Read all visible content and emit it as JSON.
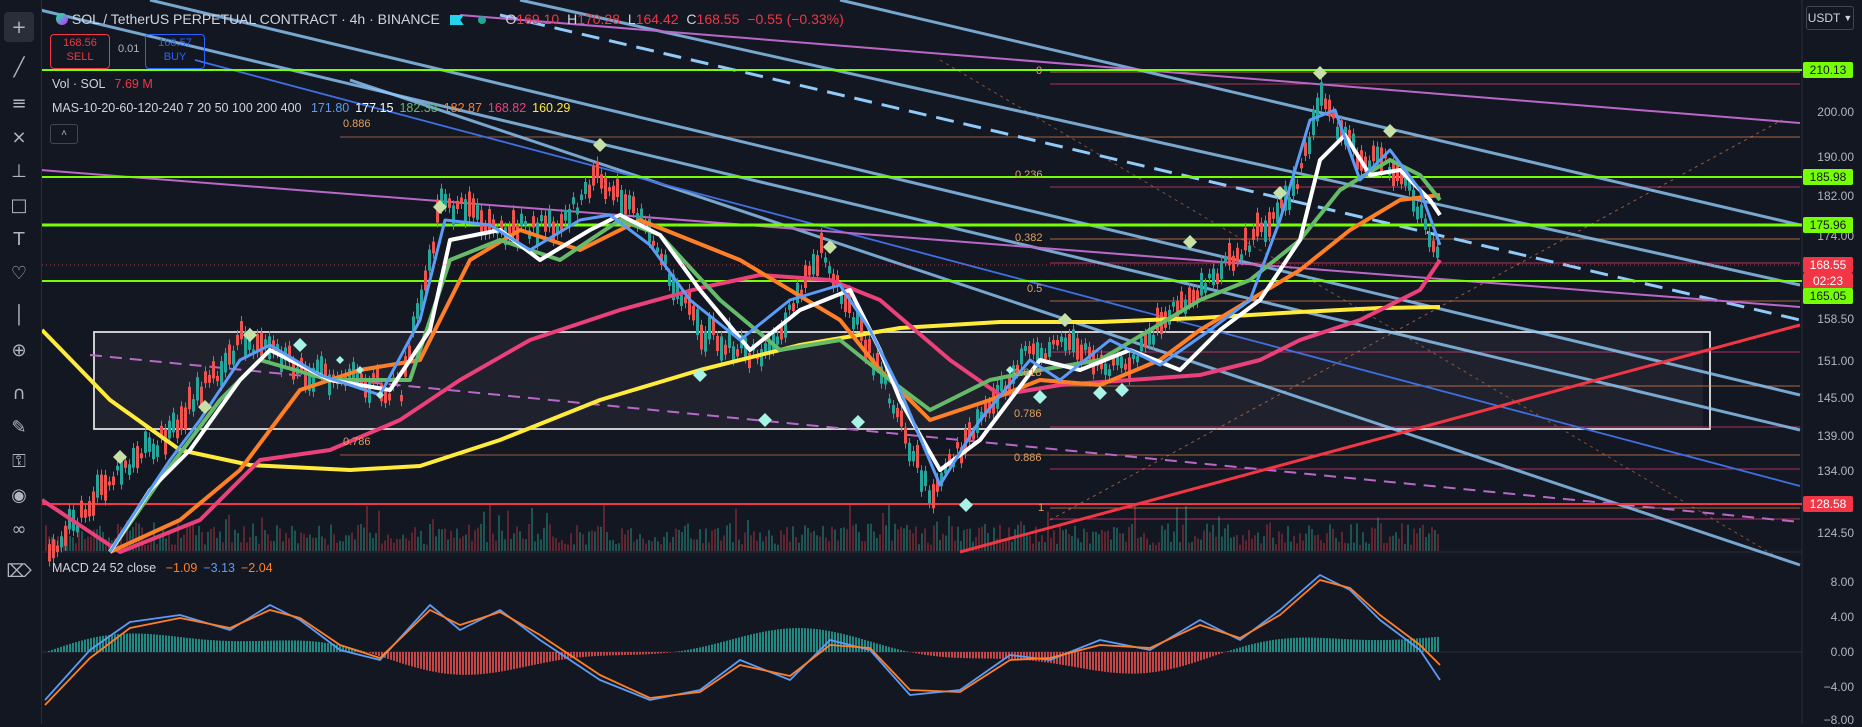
{
  "header": {
    "symbol": "SOL / TetherUS PERPETUAL CONTRACT · 4h · BINANCE",
    "open_label": "O",
    "open": "169.10",
    "high_label": "H",
    "high": "170.28",
    "low_label": "L",
    "low": "164.42",
    "close_label": "C",
    "close": "168.55",
    "change": "−0.55 (−0.33%)"
  },
  "trade": {
    "sell_price": "168.56",
    "sell_label": "SELL",
    "spread": "0.01",
    "buy_price": "168.57",
    "buy_label": "BUY"
  },
  "indicators": {
    "vol_label": "Vol · SOL",
    "vol_value": "7.69 M",
    "ma_label": "MAS-10-20-60-120-240 7 20 50 100 200 400",
    "ma_values": [
      {
        "value": "171.80",
        "color": "#5b9cf6"
      },
      {
        "value": "177.15",
        "color": "#ffffff"
      },
      {
        "value": "182.33",
        "color": "#66bb6a"
      },
      {
        "value": "182.87",
        "color": "#ff7f27"
      },
      {
        "value": "168.82",
        "color": "#ec407a"
      },
      {
        "value": "160.29",
        "color": "#ffeb3b"
      }
    ],
    "macd_label": "MACD 24 52 close",
    "macd_values": [
      {
        "value": "−1.09",
        "color": "#ff7f27"
      },
      {
        "value": "−3.13",
        "color": "#5b9cf6"
      },
      {
        "value": "−2.04",
        "color": "#ff7f27"
      }
    ]
  },
  "currency": "USDT",
  "toolbar_icons": [
    "crosshair-icon",
    "trendline-icon",
    "fib-icon",
    "pattern-icon",
    "measure-icon",
    "rectangle-icon",
    "text-icon",
    "heart-icon",
    "ruler-icon",
    "zoom-icon",
    "magnet-icon",
    "lock-pen-icon",
    "lock-icon",
    "eye-icon",
    "link-icon",
    "trash-icon"
  ],
  "price_axis": [
    "200.00",
    "190.00",
    "182.00",
    "174.00",
    "158.50",
    "151.00",
    "145.00",
    "139.00",
    "134.00",
    "124.50"
  ],
  "price_tags": [
    {
      "value": "210.13",
      "bg": "#76ff03",
      "fg": "#131722"
    },
    {
      "value": "185.98",
      "bg": "#76ff03",
      "fg": "#131722"
    },
    {
      "value": "175.96",
      "bg": "#76ff03",
      "fg": "#131722"
    },
    {
      "value": "168.55",
      "bg": "#f23645",
      "fg": "#ffffff"
    },
    {
      "value": "02:23",
      "bg": "#f23645",
      "fg": "#ffffff"
    },
    {
      "value": "165.05",
      "bg": "#76ff03",
      "fg": "#131722"
    },
    {
      "value": "128.58",
      "bg": "#f23645",
      "fg": "#ffffff"
    }
  ],
  "macd_axis": [
    "8.00",
    "4.00",
    "0.00",
    "−4.00",
    "−8.00"
  ],
  "fib_labels": [
    {
      "text": "0",
      "color": "#e0a060"
    },
    {
      "text": "0.236",
      "color": "#e0a060"
    },
    {
      "text": "0.382",
      "color": "#e0a060"
    },
    {
      "text": "0.5",
      "color": "#e0a060"
    },
    {
      "text": "0.618",
      "color": "#e0a060"
    },
    {
      "text": "0.786",
      "color": "#e0a060"
    },
    {
      "text": "0.886",
      "color": "#e0a060"
    },
    {
      "text": "1",
      "color": "#e0a060"
    }
  ],
  "fib_labels_left": [
    {
      "text": "0.886",
      "color": "#e0a060"
    },
    {
      "text": "0.786",
      "color": "#e0a060"
    }
  ],
  "colors": {
    "background": "#131722",
    "green_level": "#76ff03",
    "red_level": "#f23645",
    "channel_blue": "#90caf9",
    "purple": "#ba68c8",
    "ma_blue": "#5b9cf6",
    "ma_white": "#ffffff",
    "ma_green": "#66bb6a",
    "ma_orange": "#ff7f27",
    "ma_pink": "#ec407a",
    "ma_yellow": "#ffeb3b"
  }
}
